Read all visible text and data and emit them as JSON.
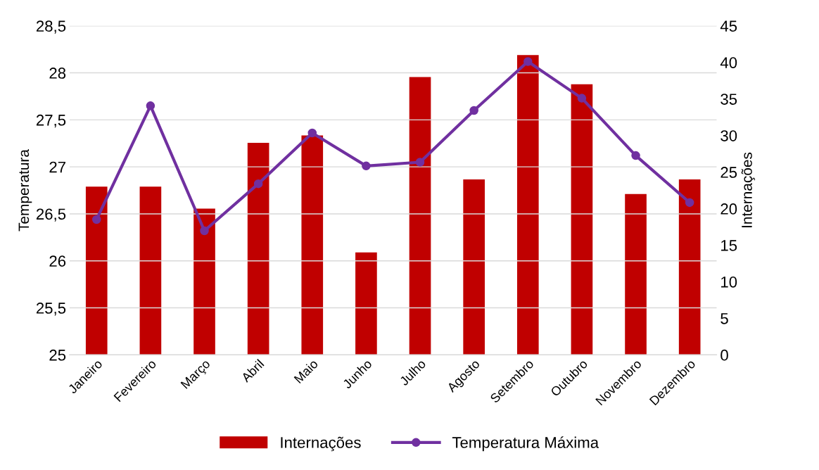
{
  "chart_data": {
    "type": "bar",
    "ylabel": "Temperatura",
    "y2label": "Internações",
    "categories": [
      "Janeiro",
      "Fevereiro",
      "Março",
      "Abril",
      "Maio",
      "Junho",
      "Julho",
      "Agosto",
      "Setembro",
      "Outubro",
      "Novembro",
      "Dezembro"
    ],
    "series": [
      {
        "name": "Internações",
        "axis": "y2",
        "color": "#c00000",
        "values": [
          23,
          23,
          20,
          29,
          30,
          14,
          38,
          24,
          41,
          37,
          22,
          24
        ]
      },
      {
        "name": "Temperatura Máxima",
        "type": "line",
        "axis": "y",
        "color": "#7030a0",
        "marker": "circle",
        "values": [
          26.44,
          27.65,
          26.32,
          26.82,
          27.36,
          27.01,
          27.05,
          27.6,
          28.12,
          27.73,
          27.12,
          26.62
        ]
      }
    ],
    "ylim": [
      25,
      28.5
    ],
    "yticks": [
      25,
      {
        "value": 25.5,
        "label": "25,5"
      },
      26,
      {
        "value": 26.5,
        "label": "26,5"
      },
      27,
      {
        "value": 27.5,
        "label": "27,5"
      },
      28,
      {
        "value": 28.5,
        "label": "28,5"
      }
    ],
    "y2lim": [
      0,
      45
    ],
    "y2ticks": [
      0,
      5,
      10,
      15,
      20,
      25,
      30,
      35,
      40,
      45
    ],
    "grid": "y",
    "legend": "bottom"
  }
}
